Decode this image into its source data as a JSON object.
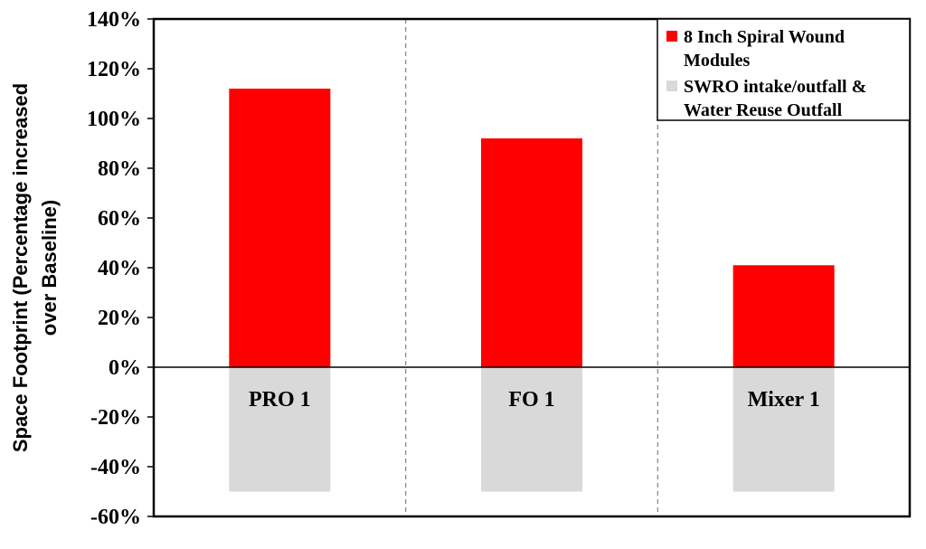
{
  "chart_data": {
    "type": "bar",
    "categories": [
      "PRO 1",
      "FO 1",
      "Mixer 1"
    ],
    "series": [
      {
        "name": "8 Inch Spiral Wound Modules",
        "values": [
          112,
          92,
          41
        ],
        "color": "#ff0000"
      },
      {
        "name": "SWRO intake/outfall & Water Reuse Outfall",
        "values": [
          -50,
          -50,
          -50
        ],
        "color": "#d9d9d9"
      }
    ],
    "title": "",
    "xlabel": "",
    "ylabel": "Space Footprint (Percentage increased over Baseline)",
    "ylabel_lines": [
      "Space Footprint (Percentage increased",
      "over Baseline)"
    ],
    "ylim": [
      -60,
      140
    ],
    "yticks": [
      140,
      120,
      100,
      80,
      60,
      40,
      20,
      0,
      -20,
      -40,
      -60
    ],
    "ytick_labels": [
      "140%",
      "120%",
      "100%",
      "80%",
      "60%",
      "40%",
      "20%",
      "0%",
      "-20%",
      "-40%",
      "-60%"
    ],
    "legend": {
      "position": "top-right",
      "entries": [
        {
          "lines": [
            "8 Inch Spiral Wound",
            "Modules"
          ],
          "color": "#ff0000"
        },
        {
          "lines": [
            "SWRO intake/outfall &",
            "Water Reuse Outfall"
          ],
          "color": "#d9d9d9"
        }
      ]
    },
    "grid": {
      "vertical_dashed_separators": true,
      "horizontal": false
    }
  }
}
